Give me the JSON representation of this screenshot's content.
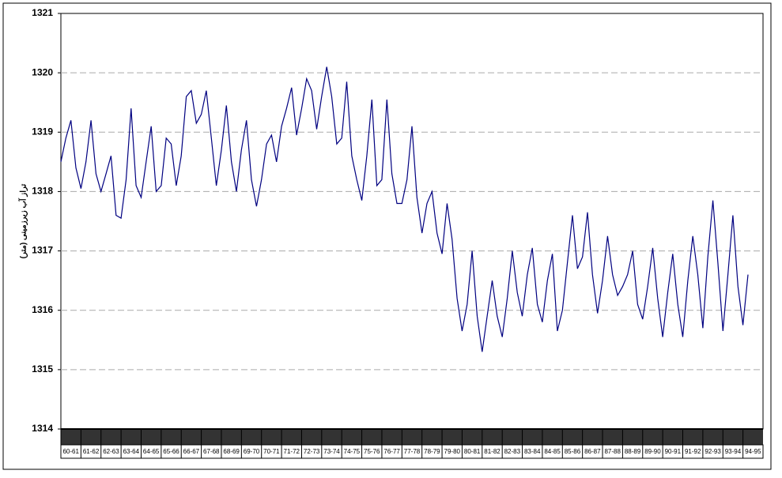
{
  "chart_data": {
    "type": "line",
    "y_label": "تراز آب زیرزمینی (متر)",
    "categories": [
      "60-61",
      null,
      null,
      null,
      "61-62",
      null,
      null,
      null,
      "62-63",
      null,
      null,
      null,
      "63-64",
      null,
      null,
      null,
      "64-65",
      null,
      null,
      null,
      "65-66",
      null,
      null,
      null,
      "66-67",
      null,
      null,
      null,
      "67-68",
      null,
      null,
      null,
      "68-69",
      null,
      null,
      null,
      "69-70",
      null,
      null,
      null,
      "70-71",
      null,
      null,
      null,
      "71-72",
      null,
      null,
      null,
      "72-73",
      null,
      null,
      null,
      "73-74",
      null,
      null,
      null,
      "74-75",
      null,
      null,
      null,
      "75-76",
      null,
      null,
      null,
      "76-77",
      null,
      null,
      null,
      "77-78",
      null,
      null,
      null,
      "78-79",
      null,
      null,
      null,
      "79-80",
      null,
      null,
      null,
      "80-81",
      null,
      null,
      null,
      "81-82",
      null,
      null,
      null,
      "82-83",
      null,
      null,
      null,
      "83-84",
      null,
      null,
      null,
      "84-85",
      null,
      null,
      null,
      "85-86",
      null,
      null,
      null,
      "86-87",
      null,
      null,
      null,
      "87-88",
      null,
      null,
      null,
      "88-89",
      null,
      null,
      null,
      "89-90",
      null,
      null,
      null,
      "90-91",
      null,
      null,
      null,
      "91-92",
      null,
      null,
      null,
      "92-93",
      null,
      null,
      null,
      "93-94",
      null,
      null,
      null,
      "94-95",
      null,
      null,
      null
    ],
    "series": [
      {
        "color": "#000080",
        "values": [
          1318.5,
          1318.9,
          1319.2,
          1318.4,
          1318.05,
          1318.5,
          1319.2,
          1318.3,
          1318.0,
          1318.3,
          1318.6,
          1317.6,
          1317.55,
          1318.2,
          1319.4,
          1318.1,
          1317.9,
          1318.5,
          1319.1,
          1318.0,
          1318.1,
          1318.9,
          1318.8,
          1318.1,
          1318.6,
          1319.6,
          1319.7,
          1319.15,
          1319.3,
          1319.7,
          1318.9,
          1318.1,
          1318.7,
          1319.45,
          1318.5,
          1318.0,
          1318.7,
          1319.2,
          1318.2,
          1317.75,
          1318.2,
          1318.8,
          1318.95,
          1318.5,
          1319.1,
          1319.4,
          1319.75,
          1318.95,
          1319.4,
          1319.9,
          1319.7,
          1319.05,
          1319.6,
          1320.1,
          1319.6,
          1318.8,
          1318.9,
          1319.85,
          1318.6,
          1318.2,
          1317.85,
          1318.6,
          1319.55,
          1318.1,
          1318.2,
          1319.55,
          1318.3,
          1317.8,
          1317.8,
          1318.2,
          1319.1,
          1317.9,
          1317.3,
          1317.8,
          1318.0,
          1317.3,
          1316.95,
          1317.8,
          1317.2,
          1316.2,
          1315.65,
          1316.1,
          1317.0,
          1315.9,
          1315.3,
          1315.9,
          1316.5,
          1315.9,
          1315.55,
          1316.2,
          1317.0,
          1316.3,
          1315.9,
          1316.6,
          1317.05,
          1316.1,
          1315.8,
          1316.5,
          1316.95,
          1315.65,
          1316.0,
          1316.8,
          1317.6,
          1316.7,
          1316.9,
          1317.65,
          1316.6,
          1315.95,
          1316.5,
          1317.25,
          1316.6,
          1316.25,
          1316.4,
          1316.6,
          1317.0,
          1316.1,
          1315.85,
          1316.4,
          1317.05,
          1316.2,
          1315.55,
          1316.3,
          1316.95,
          1316.1,
          1315.55,
          1316.5,
          1317.25,
          1316.6,
          1315.7,
          1316.9,
          1317.85,
          1316.8,
          1315.65,
          1316.6,
          1317.6,
          1316.4,
          1315.75,
          1316.6,
          null,
          null
        ]
      }
    ],
    "ylim": [
      1314,
      1321
    ],
    "yticks": [
      1314,
      1315,
      1316,
      1317,
      1318,
      1319,
      1320,
      1321
    ],
    "grid": true
  }
}
